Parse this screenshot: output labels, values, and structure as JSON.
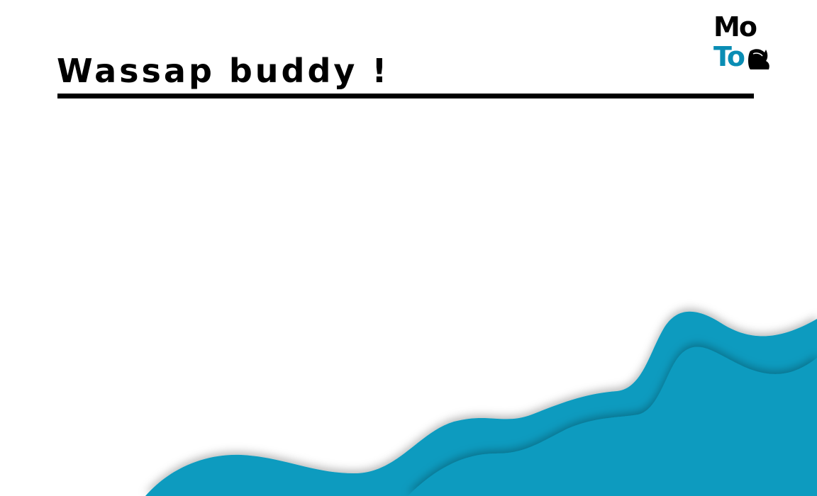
{
  "slide": {
    "title": "Wassap buddy !"
  },
  "logo": {
    "line1": "Mo",
    "line2": "To",
    "icon": "cup-icon"
  },
  "colors": {
    "title": "#000000",
    "accent": "#0a9bbf",
    "accent_dark": "#0886ab",
    "background": "#ffffff"
  }
}
